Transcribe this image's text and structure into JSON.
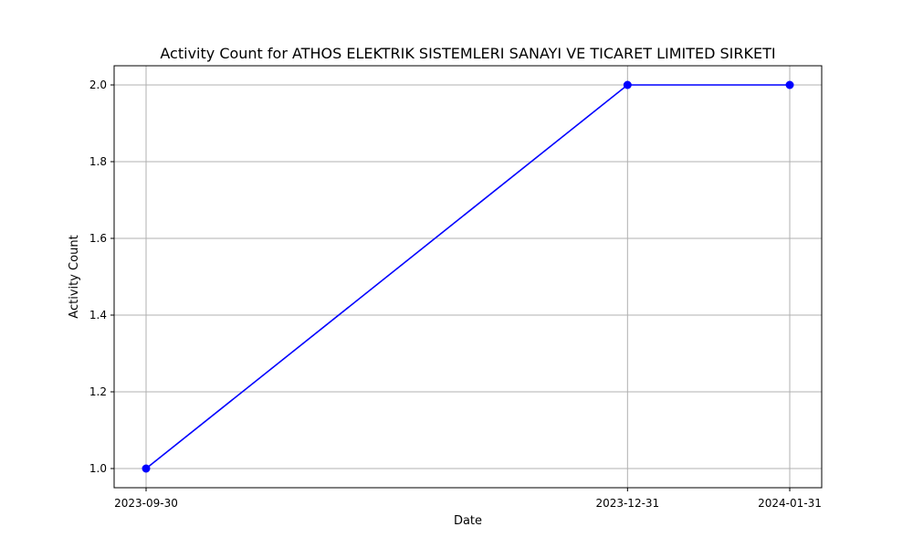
{
  "chart_data": {
    "type": "line",
    "title": "Activity Count for ATHOS ELEKTRIK SISTEMLERI SANAYI VE TICARET LIMITED SIRKETI",
    "xlabel": "Date",
    "ylabel": "Activity Count",
    "x": [
      "2023-09-30",
      "2023-12-31",
      "2024-01-31"
    ],
    "x_tick_labels": [
      "2023-09-30",
      "2023-12-31",
      "2024-01-31"
    ],
    "series": [
      {
        "values": [
          1.0,
          2.0,
          2.0
        ],
        "color": "#0000ff",
        "marker": "circle"
      }
    ],
    "ylim": [
      0.95,
      2.05
    ],
    "y_ticks": [
      1.0,
      1.2,
      1.4,
      1.6,
      1.8,
      2.0
    ],
    "y_tick_labels": [
      "1.0",
      "1.2",
      "1.4",
      "1.6",
      "1.8",
      "2.0"
    ],
    "grid": true,
    "grid_color": "#b0b0b0",
    "x_scale": "time"
  }
}
